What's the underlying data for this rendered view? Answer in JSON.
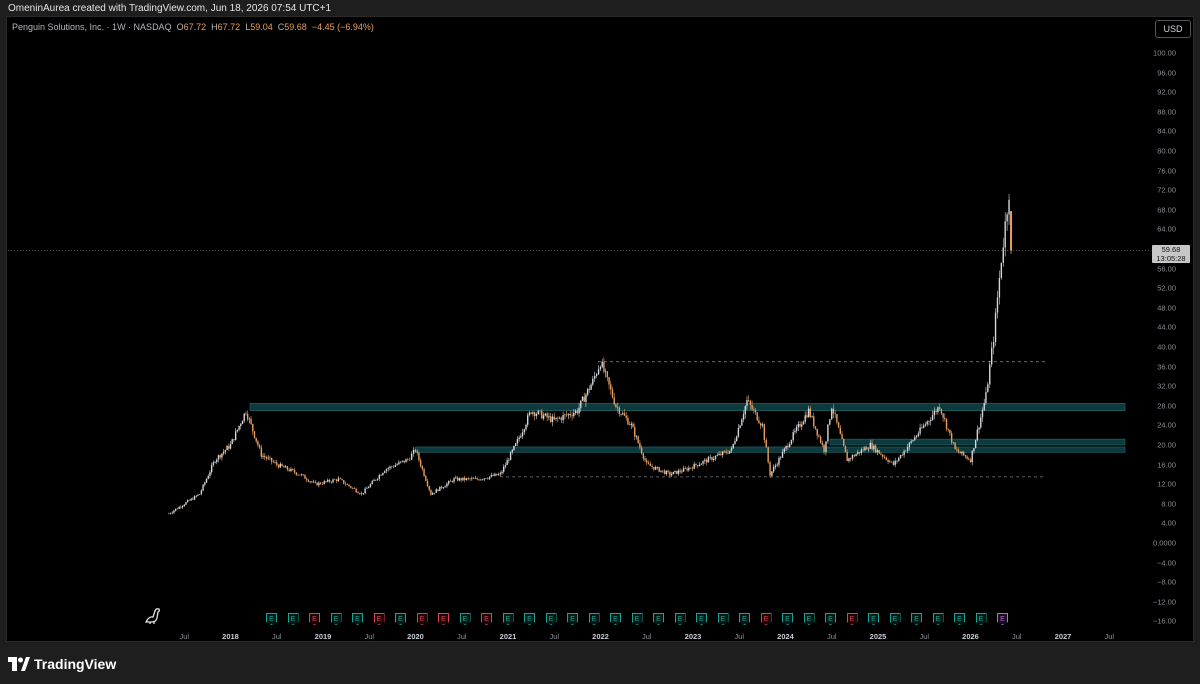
{
  "header": {
    "caption": "OmeninAurea created with TradingView.com, Jun 18, 2026 07:54 UTC+1"
  },
  "legend": {
    "symbol": "Penguin Solutions, Inc. · 1W · NASDAQ",
    "open_label": "O",
    "open": "67.72",
    "high_label": "H",
    "high": "67.72",
    "low_label": "L",
    "low": "59.04",
    "close_label": "C",
    "close": "59.68",
    "change": "−4.45 (−6.94%)"
  },
  "currency_button": "USD",
  "price_tag": {
    "price": "59.68",
    "countdown": "13:05:28"
  },
  "price_axis": [
    "100.00",
    "96.00",
    "92.00",
    "88.00",
    "84.00",
    "80.00",
    "76.00",
    "72.00",
    "68.00",
    "64.00",
    "60.00",
    "56.00",
    "52.00",
    "48.00",
    "44.00",
    "40.00",
    "36.00",
    "32.00",
    "28.00",
    "24.00",
    "20.00",
    "16.00",
    "12.00",
    "8.00",
    "4.00",
    "0.0000",
    "−4.00",
    "−8.00",
    "−12.00",
    "−16.00"
  ],
  "time_axis": [
    {
      "label": "Jul",
      "year": false
    },
    {
      "label": "2018",
      "year": true
    },
    {
      "label": "Jul",
      "year": false
    },
    {
      "label": "2019",
      "year": true
    },
    {
      "label": "Jul",
      "year": false
    },
    {
      "label": "2020",
      "year": true
    },
    {
      "label": "Jul",
      "year": false
    },
    {
      "label": "2021",
      "year": true
    },
    {
      "label": "Jul",
      "year": false
    },
    {
      "label": "2022",
      "year": true
    },
    {
      "label": "Jul",
      "year": false
    },
    {
      "label": "2023",
      "year": true
    },
    {
      "label": "Jul",
      "year": false
    },
    {
      "label": "2024",
      "year": true
    },
    {
      "label": "Jul",
      "year": false
    },
    {
      "label": "2025",
      "year": true
    },
    {
      "label": "Jul",
      "year": false
    },
    {
      "label": "2026",
      "year": true
    },
    {
      "label": "Jul",
      "year": false
    },
    {
      "label": "2027",
      "year": true
    },
    {
      "label": "Jul",
      "year": false
    }
  ],
  "earnings_marker_label": "E",
  "earnings_markers": [
    "beat",
    "beat",
    "miss",
    "beat",
    "beat",
    "miss",
    "beat",
    "miss",
    "miss",
    "beat",
    "miss",
    "beat",
    "beat",
    "beat",
    "beat",
    "beat",
    "beat",
    "beat",
    "beat",
    "beat",
    "beat",
    "beat",
    "beat",
    "miss",
    "beat",
    "beat",
    "beat",
    "miss",
    "beat",
    "beat",
    "beat",
    "beat",
    "beat",
    "beat",
    "next"
  ],
  "brand": {
    "name": "TradingView"
  },
  "colors": {
    "up": "#d3d6dd",
    "down": "#e8a060",
    "zone": "#0f3a3d",
    "background": "#000000"
  },
  "chart_data": {
    "type": "candlestick",
    "timeframe": "1W",
    "x_range": [
      "2017",
      "2027"
    ],
    "ylim": [
      -16,
      100
    ],
    "last_price": 59.68,
    "zones": [
      {
        "low": 27.0,
        "high": 28.5
      },
      {
        "low": 20.0,
        "high": 21.2
      },
      {
        "low": 18.5,
        "high": 19.6
      }
    ],
    "dashed_levels": [
      {
        "price": 37.0
      },
      {
        "price": 13.5
      }
    ],
    "close_path": [
      {
        "date": "2017-05",
        "price": 6
      },
      {
        "date": "2017-07",
        "price": 8
      },
      {
        "date": "2017-09",
        "price": 10
      },
      {
        "date": "2017-11",
        "price": 17
      },
      {
        "date": "2018-01",
        "price": 20
      },
      {
        "date": "2018-03",
        "price": 27
      },
      {
        "date": "2018-05",
        "price": 18
      },
      {
        "date": "2018-07",
        "price": 16
      },
      {
        "date": "2018-10",
        "price": 14
      },
      {
        "date": "2018-12",
        "price": 12
      },
      {
        "date": "2019-03",
        "price": 13
      },
      {
        "date": "2019-06",
        "price": 10
      },
      {
        "date": "2019-09",
        "price": 15
      },
      {
        "date": "2019-12",
        "price": 17
      },
      {
        "date": "2020-01",
        "price": 19
      },
      {
        "date": "2020-03",
        "price": 10
      },
      {
        "date": "2020-06",
        "price": 13
      },
      {
        "date": "2020-09",
        "price": 13
      },
      {
        "date": "2020-12",
        "price": 14
      },
      {
        "date": "2021-02",
        "price": 20
      },
      {
        "date": "2021-04",
        "price": 27
      },
      {
        "date": "2021-07",
        "price": 25
      },
      {
        "date": "2021-10",
        "price": 27
      },
      {
        "date": "2021-12",
        "price": 33
      },
      {
        "date": "2022-01",
        "price": 37
      },
      {
        "date": "2022-03",
        "price": 28
      },
      {
        "date": "2022-05",
        "price": 24
      },
      {
        "date": "2022-07",
        "price": 16
      },
      {
        "date": "2022-10",
        "price": 14
      },
      {
        "date": "2022-12",
        "price": 15
      },
      {
        "date": "2023-03",
        "price": 17
      },
      {
        "date": "2023-06",
        "price": 19
      },
      {
        "date": "2023-08",
        "price": 29
      },
      {
        "date": "2023-10",
        "price": 24
      },
      {
        "date": "2023-11",
        "price": 14
      },
      {
        "date": "2024-02",
        "price": 22
      },
      {
        "date": "2024-04",
        "price": 27
      },
      {
        "date": "2024-06",
        "price": 19
      },
      {
        "date": "2024-07",
        "price": 28
      },
      {
        "date": "2024-09",
        "price": 17
      },
      {
        "date": "2024-12",
        "price": 20
      },
      {
        "date": "2025-03",
        "price": 16
      },
      {
        "date": "2025-06",
        "price": 22
      },
      {
        "date": "2025-09",
        "price": 28
      },
      {
        "date": "2025-11",
        "price": 19
      },
      {
        "date": "2026-01",
        "price": 17
      },
      {
        "date": "2026-03",
        "price": 30
      },
      {
        "date": "2026-04",
        "price": 42
      },
      {
        "date": "2026-05",
        "price": 58
      },
      {
        "date": "2026-06",
        "price": 72
      },
      {
        "date": "2026-06",
        "price": 59.68
      }
    ]
  }
}
